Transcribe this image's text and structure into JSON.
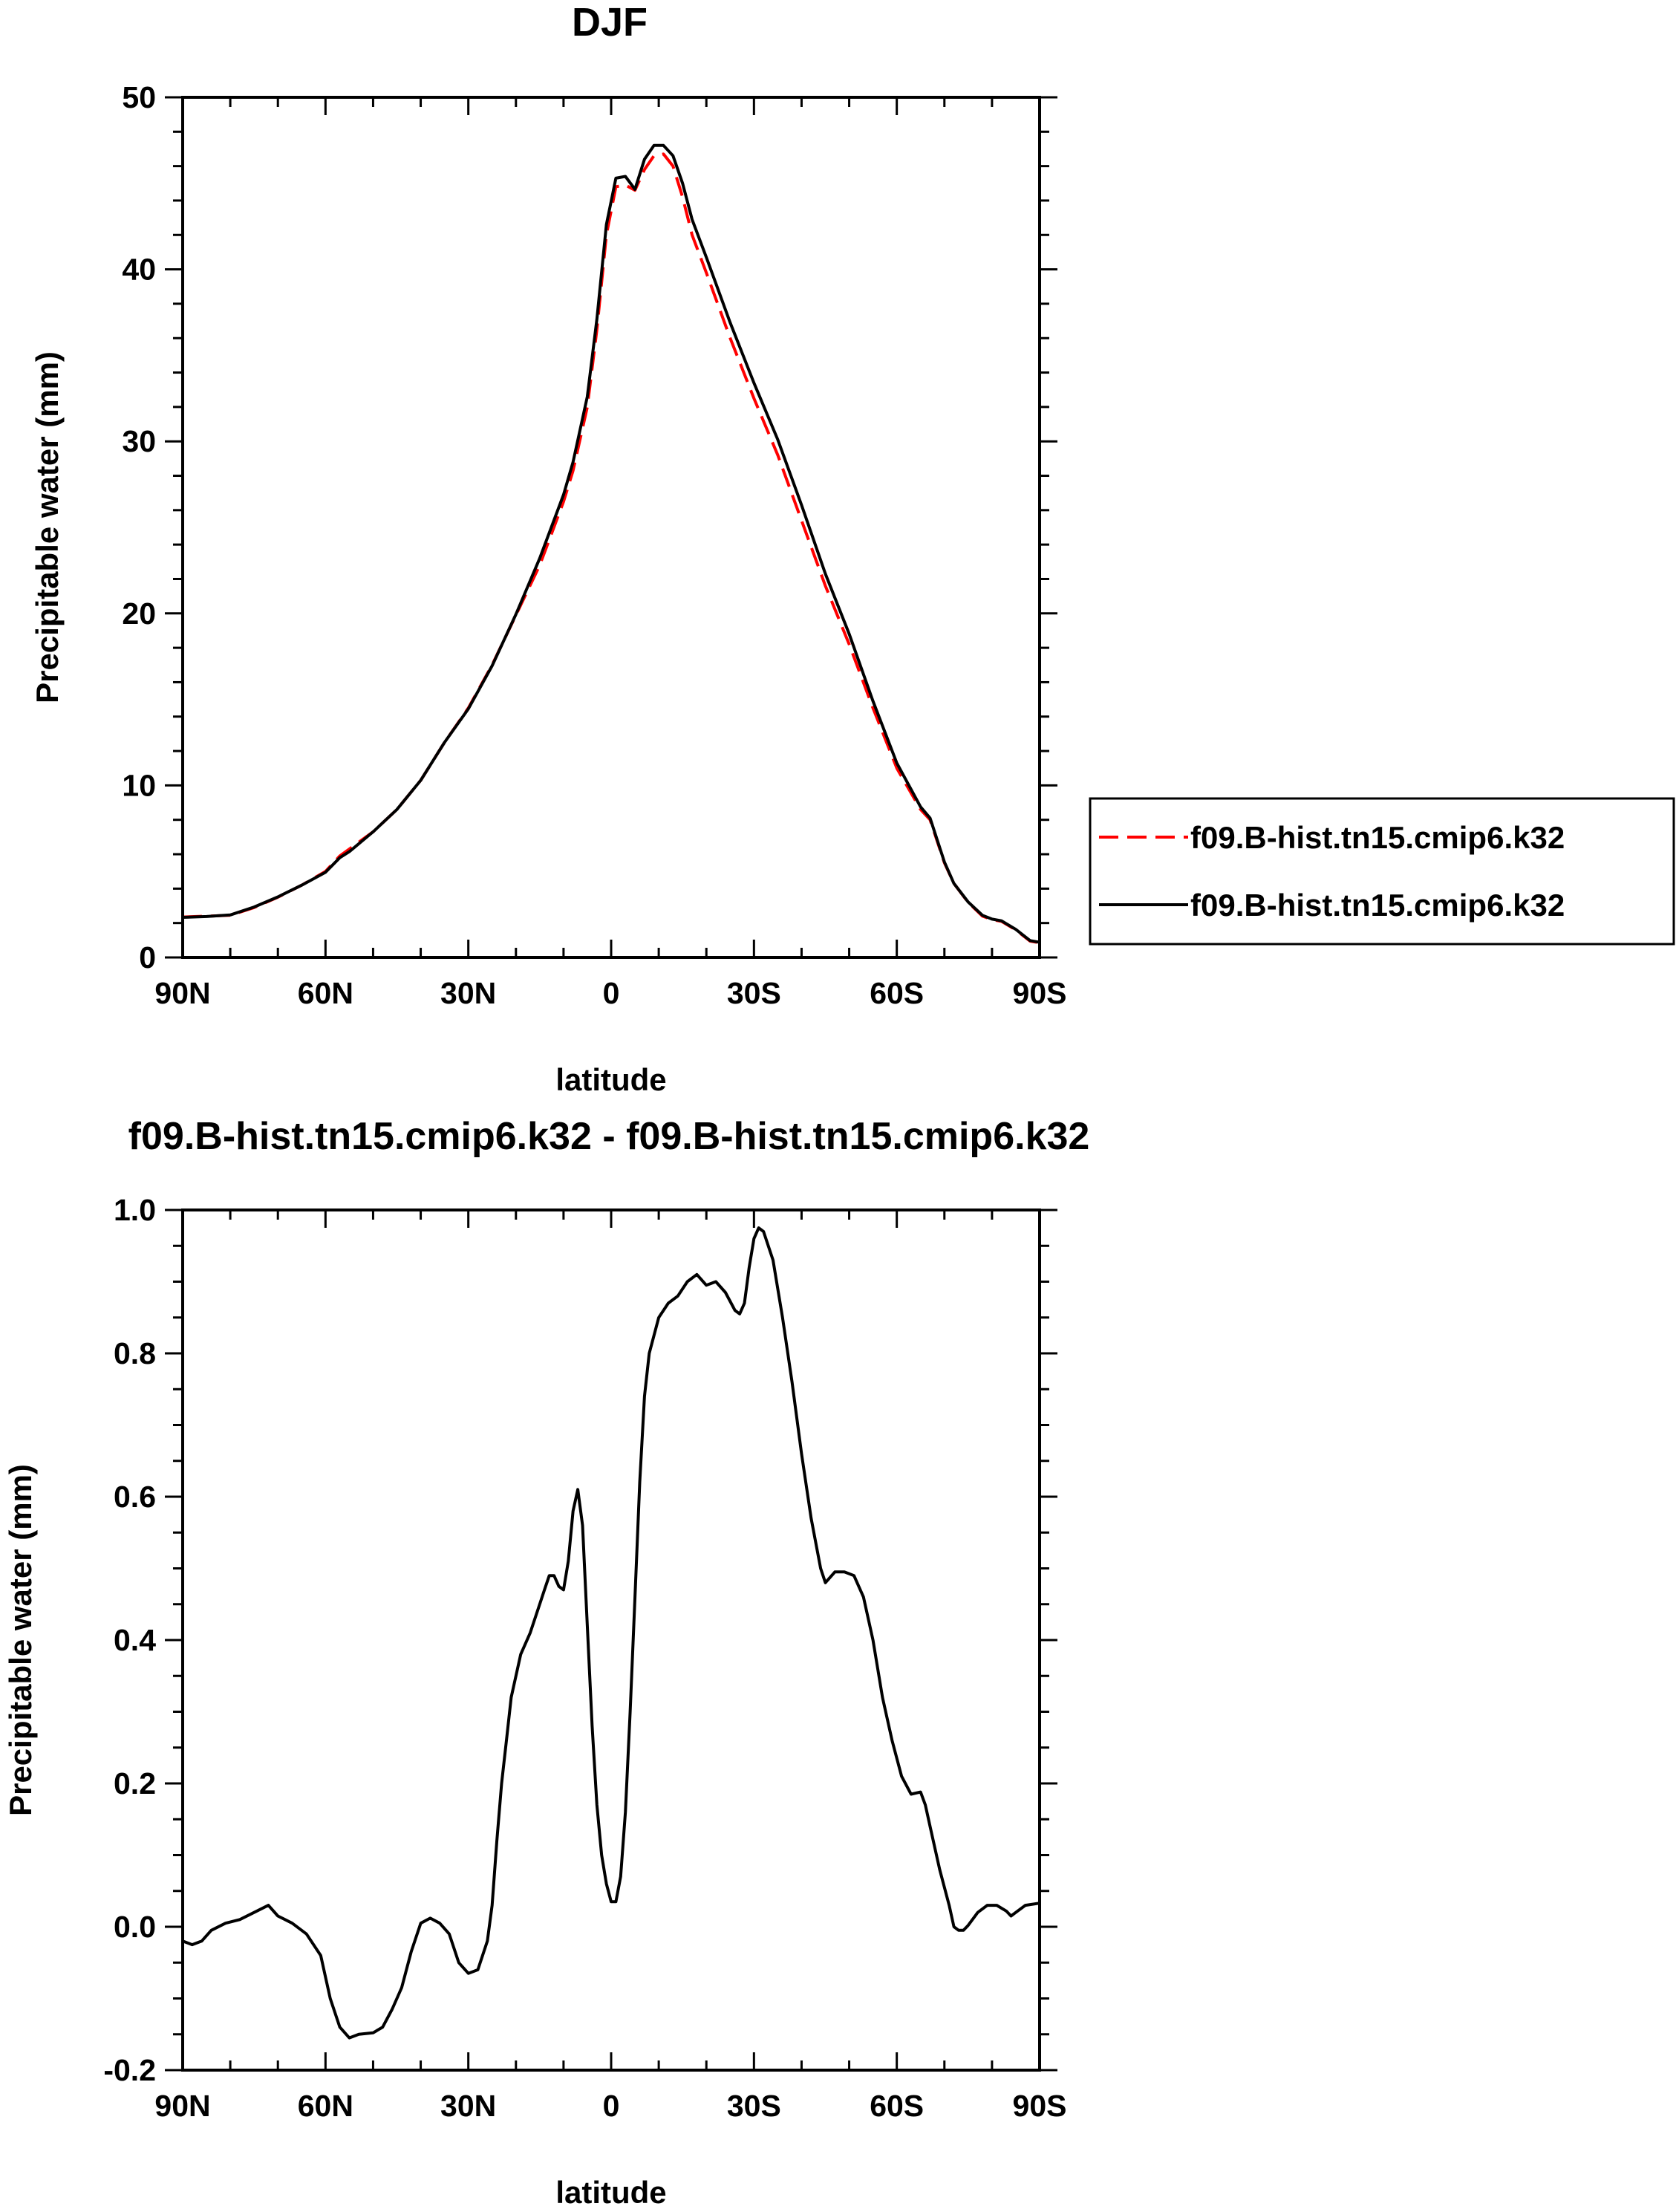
{
  "chart_data": [
    {
      "type": "line",
      "title": "DJF",
      "xlabel": "latitude",
      "ylabel": "Precipitable water (mm)",
      "xlim": [
        -90,
        90
      ],
      "ylim": [
        0,
        50
      ],
      "x_ticks": [
        -90,
        -60,
        -30,
        0,
        30,
        60,
        90
      ],
      "x_tick_labels": [
        "90N",
        "60N",
        "30N",
        "0",
        "30S",
        "60S",
        "90S"
      ],
      "y_ticks": [
        0,
        10,
        20,
        30,
        40,
        50
      ],
      "y_tick_labels": [
        "0",
        "10",
        "20",
        "30",
        "40",
        "50"
      ],
      "legend_position": "right",
      "series": [
        {
          "name": "f09.B-hist.tn15.cmip6.k32",
          "color": "#ff0000",
          "dash": "dashed",
          "points": [
            [
              -90,
              2.35
            ],
            [
              -85,
              2.4
            ],
            [
              -80,
              2.45
            ],
            [
              -75,
              2.9
            ],
            [
              -70,
              3.5
            ],
            [
              -65,
              4.2
            ],
            [
              -60,
              5.0
            ],
            [
              -57,
              5.9
            ],
            [
              -55,
              6.3
            ],
            [
              -50,
              7.3
            ],
            [
              -45,
              8.6
            ],
            [
              -40,
              10.3
            ],
            [
              -35,
              12.5
            ],
            [
              -30,
              14.5
            ],
            [
              -25,
              17.0
            ],
            [
              -20,
              19.9
            ],
            [
              -15,
              22.8
            ],
            [
              -10,
              26.5
            ],
            [
              -8,
              28.3
            ],
            [
              -5,
              32.0
            ],
            [
              -3,
              36.5
            ],
            [
              -1,
              42.0
            ],
            [
              1,
              44.8
            ],
            [
              3,
              44.9
            ],
            [
              5,
              44.6
            ],
            [
              7,
              45.8
            ],
            [
              9,
              46.6
            ],
            [
              11,
              46.7
            ],
            [
              13,
              46.0
            ],
            [
              15,
              44.2
            ],
            [
              17,
              42.0
            ],
            [
              20,
              39.8
            ],
            [
              25,
              36.0
            ],
            [
              30,
              32.5
            ],
            [
              35,
              29.2
            ],
            [
              40,
              25.4
            ],
            [
              45,
              21.6
            ],
            [
              50,
              18.2
            ],
            [
              55,
              14.5
            ],
            [
              60,
              11.0
            ],
            [
              65,
              8.6
            ],
            [
              67,
              8.0
            ],
            [
              70,
              5.5
            ],
            [
              72,
              4.3
            ],
            [
              75,
              3.2
            ],
            [
              78,
              2.4
            ],
            [
              80,
              2.2
            ],
            [
              82,
              2.1
            ],
            [
              85,
              1.6
            ],
            [
              88,
              0.95
            ],
            [
              90,
              0.85
            ]
          ]
        },
        {
          "name": "f09.B-hist.tn15.cmip6.k32",
          "color": "#000000",
          "dash": "solid",
          "points": [
            [
              -90,
              2.33
            ],
            [
              -85,
              2.38
            ],
            [
              -80,
              2.47
            ],
            [
              -75,
              2.93
            ],
            [
              -70,
              3.52
            ],
            [
              -65,
              4.2
            ],
            [
              -60,
              4.95
            ],
            [
              -57,
              5.8
            ],
            [
              -55,
              6.15
            ],
            [
              -50,
              7.3
            ],
            [
              -45,
              8.6
            ],
            [
              -40,
              10.3
            ],
            [
              -35,
              12.5
            ],
            [
              -30,
              14.45
            ],
            [
              -25,
              16.95
            ],
            [
              -20,
              19.95
            ],
            [
              -15,
              23.2
            ],
            [
              -10,
              26.9
            ],
            [
              -8,
              28.8
            ],
            [
              -5,
              32.6
            ],
            [
              -3,
              37.1
            ],
            [
              -1,
              42.6
            ],
            [
              1,
              45.3
            ],
            [
              3,
              45.4
            ],
            [
              5,
              44.65
            ],
            [
              7,
              46.4
            ],
            [
              9,
              47.2
            ],
            [
              11,
              47.2
            ],
            [
              13,
              46.6
            ],
            [
              15,
              45.0
            ],
            [
              17,
              42.9
            ],
            [
              20,
              40.7
            ],
            [
              25,
              36.9
            ],
            [
              30,
              33.4
            ],
            [
              35,
              30.1
            ],
            [
              40,
              26.3
            ],
            [
              45,
              22.3
            ],
            [
              50,
              18.8
            ],
            [
              55,
              14.9
            ],
            [
              60,
              11.3
            ],
            [
              65,
              8.75
            ],
            [
              67,
              8.1
            ],
            [
              70,
              5.55
            ],
            [
              72,
              4.3
            ],
            [
              75,
              3.22
            ],
            [
              78,
              2.45
            ],
            [
              80,
              2.23
            ],
            [
              82,
              2.13
            ],
            [
              85,
              1.63
            ],
            [
              88,
              0.98
            ],
            [
              90,
              0.88
            ]
          ]
        }
      ]
    },
    {
      "type": "line",
      "title": "f09.B-hist.tn15.cmip6.k32 - f09.B-hist.tn15.cmip6.k32",
      "xlabel": "latitude",
      "ylabel": "Precipitable water (mm)",
      "xlim": [
        -90,
        90
      ],
      "ylim": [
        -0.2,
        1.0
      ],
      "x_ticks": [
        -90,
        -60,
        -30,
        0,
        30,
        60,
        90
      ],
      "x_tick_labels": [
        "90N",
        "60N",
        "30N",
        "0",
        "30S",
        "60S",
        "90S"
      ],
      "y_ticks": [
        -0.2,
        0.0,
        0.2,
        0.4,
        0.6,
        0.8,
        1.0
      ],
      "y_tick_labels": [
        "-0.2",
        "0.0",
        "0.2",
        "0.4",
        "0.6",
        "0.8",
        "1.0"
      ],
      "series": [
        {
          "color": "#000000",
          "dash": "solid",
          "points": [
            [
              -90,
              -0.02
            ],
            [
              -88,
              -0.025
            ],
            [
              -86,
              -0.02
            ],
            [
              -84,
              -0.005
            ],
            [
              -81,
              0.005
            ],
            [
              -78,
              0.01
            ],
            [
              -75,
              0.02
            ],
            [
              -72,
              0.03
            ],
            [
              -70,
              0.015
            ],
            [
              -67,
              0.005
            ],
            [
              -64,
              -0.01
            ],
            [
              -61,
              -0.04
            ],
            [
              -59,
              -0.1
            ],
            [
              -57,
              -0.14
            ],
            [
              -55,
              -0.155
            ],
            [
              -53,
              -0.15
            ],
            [
              -50,
              -0.148
            ],
            [
              -48,
              -0.14
            ],
            [
              -46,
              -0.115
            ],
            [
              -44,
              -0.085
            ],
            [
              -42,
              -0.035
            ],
            [
              -40,
              0.005
            ],
            [
              -38,
              0.012
            ],
            [
              -36,
              0.005
            ],
            [
              -34,
              -0.01
            ],
            [
              -32,
              -0.05
            ],
            [
              -30,
              -0.065
            ],
            [
              -28,
              -0.06
            ],
            [
              -26,
              -0.02
            ],
            [
              -25,
              0.03
            ],
            [
              -24,
              0.12
            ],
            [
              -23,
              0.2
            ],
            [
              -22,
              0.26
            ],
            [
              -21,
              0.32
            ],
            [
              -19,
              0.38
            ],
            [
              -17,
              0.41
            ],
            [
              -15,
              0.45
            ],
            [
              -14,
              0.47
            ],
            [
              -13,
              0.49
            ],
            [
              -12,
              0.49
            ],
            [
              -11,
              0.475
            ],
            [
              -10,
              0.47
            ],
            [
              -9,
              0.51
            ],
            [
              -8,
              0.58
            ],
            [
              -7,
              0.61
            ],
            [
              -6,
              0.56
            ],
            [
              -5,
              0.42
            ],
            [
              -4,
              0.28
            ],
            [
              -3,
              0.17
            ],
            [
              -2,
              0.1
            ],
            [
              -1,
              0.06
            ],
            [
              0,
              0.035
            ],
            [
              1,
              0.035
            ],
            [
              2,
              0.07
            ],
            [
              3,
              0.16
            ],
            [
              4,
              0.3
            ],
            [
              5,
              0.46
            ],
            [
              6,
              0.62
            ],
            [
              7,
              0.74
            ],
            [
              8,
              0.8
            ],
            [
              10,
              0.85
            ],
            [
              12,
              0.87
            ],
            [
              14,
              0.88
            ],
            [
              16,
              0.9
            ],
            [
              18,
              0.91
            ],
            [
              20,
              0.895
            ],
            [
              22,
              0.9
            ],
            [
              24,
              0.885
            ],
            [
              26,
              0.86
            ],
            [
              27,
              0.855
            ],
            [
              28,
              0.87
            ],
            [
              29,
              0.92
            ],
            [
              30,
              0.96
            ],
            [
              31,
              0.975
            ],
            [
              32,
              0.97
            ],
            [
              34,
              0.93
            ],
            [
              36,
              0.85
            ],
            [
              38,
              0.76
            ],
            [
              40,
              0.66
            ],
            [
              42,
              0.57
            ],
            [
              44,
              0.5
            ],
            [
              45,
              0.48
            ],
            [
              47,
              0.495
            ],
            [
              49,
              0.495
            ],
            [
              51,
              0.49
            ],
            [
              53,
              0.46
            ],
            [
              55,
              0.4
            ],
            [
              57,
              0.32
            ],
            [
              59,
              0.26
            ],
            [
              61,
              0.21
            ],
            [
              63,
              0.185
            ],
            [
              65,
              0.188
            ],
            [
              66,
              0.17
            ],
            [
              67,
              0.14
            ],
            [
              69,
              0.08
            ],
            [
              71,
              0.03
            ],
            [
              72,
              0.0
            ],
            [
              73,
              -0.005
            ],
            [
              74,
              -0.005
            ],
            [
              75,
              0.002
            ],
            [
              77,
              0.02
            ],
            [
              79,
              0.03
            ],
            [
              81,
              0.03
            ],
            [
              83,
              0.022
            ],
            [
              84,
              0.015
            ],
            [
              85,
              0.02
            ],
            [
              87,
              0.03
            ],
            [
              90,
              0.033
            ]
          ]
        }
      ]
    }
  ]
}
